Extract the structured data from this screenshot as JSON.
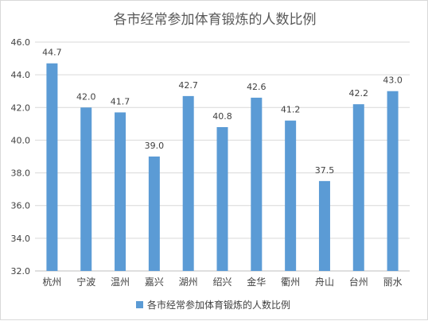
{
  "chart_data": {
    "type": "bar",
    "title": "各市经常参加体育锻炼的人数比例",
    "categories": [
      "杭州",
      "宁波",
      "温州",
      "嘉兴",
      "湖州",
      "绍兴",
      "金华",
      "衢州",
      "舟山",
      "台州",
      "丽水"
    ],
    "series": [
      {
        "name": "各市经常参加体育锻炼的人数比例",
        "values": [
          44.7,
          42.0,
          41.7,
          39.0,
          42.7,
          40.8,
          42.6,
          41.2,
          37.5,
          42.2,
          43.0
        ],
        "color": "#5B9BD5"
      }
    ],
    "data_labels": [
      "44.7",
      "42.0",
      "41.7",
      "39.0",
      "42.7",
      "40.8",
      "42.6",
      "41.2",
      "37.5",
      "42.2",
      "43.0"
    ],
    "ylim": [
      32,
      46
    ],
    "yticks": [
      32,
      34,
      36,
      38,
      40,
      42,
      44,
      46
    ],
    "ytick_labels": [
      "32.0",
      "34.0",
      "36.0",
      "38.0",
      "40.0",
      "42.0",
      "44.0",
      "46.0"
    ],
    "xlabel": "",
    "ylabel": "",
    "grid": true,
    "legend_position": "bottom"
  }
}
